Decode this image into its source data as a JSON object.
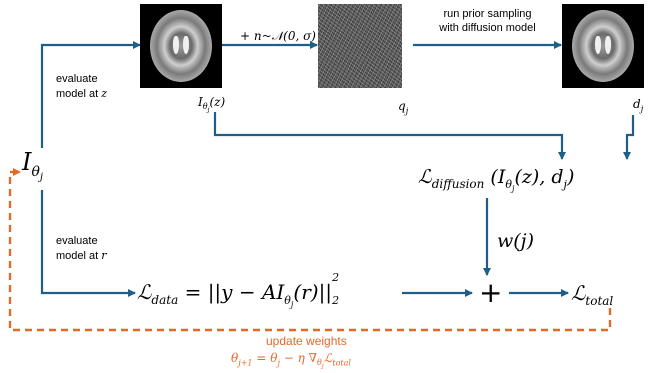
{
  "images": {
    "input": {
      "label": "I_θj(z)"
    },
    "noisy": {
      "label": "q_j"
    },
    "sampled": {
      "label": "d_j"
    }
  },
  "labels": {
    "noise_step": "+ n~𝒩(0, σ)",
    "prior_line1": "run prior sampling",
    "prior_line2": "with diffusion model",
    "eval_z_line1": "evaluate",
    "eval_z_line2": "model at z",
    "eval_r_line1": "evaluate",
    "eval_r_line2": "model at r",
    "weight": "w(j)",
    "plus": "+",
    "update_title": "update weights",
    "update_formula": "θj+1 = θj − η ∇θj ℒtotal"
  },
  "nodes": {
    "model": "I_θj",
    "loss_diffusion": "ℒdiffusion (I_θj(z), d_j)",
    "loss_data": "ℒdata = ||y − A I_θj(r)||₂²",
    "loss_total": "ℒtotal"
  },
  "colors": {
    "arrow": "#1f5f87",
    "feedback": "#e26b2a",
    "text": "#000000"
  }
}
